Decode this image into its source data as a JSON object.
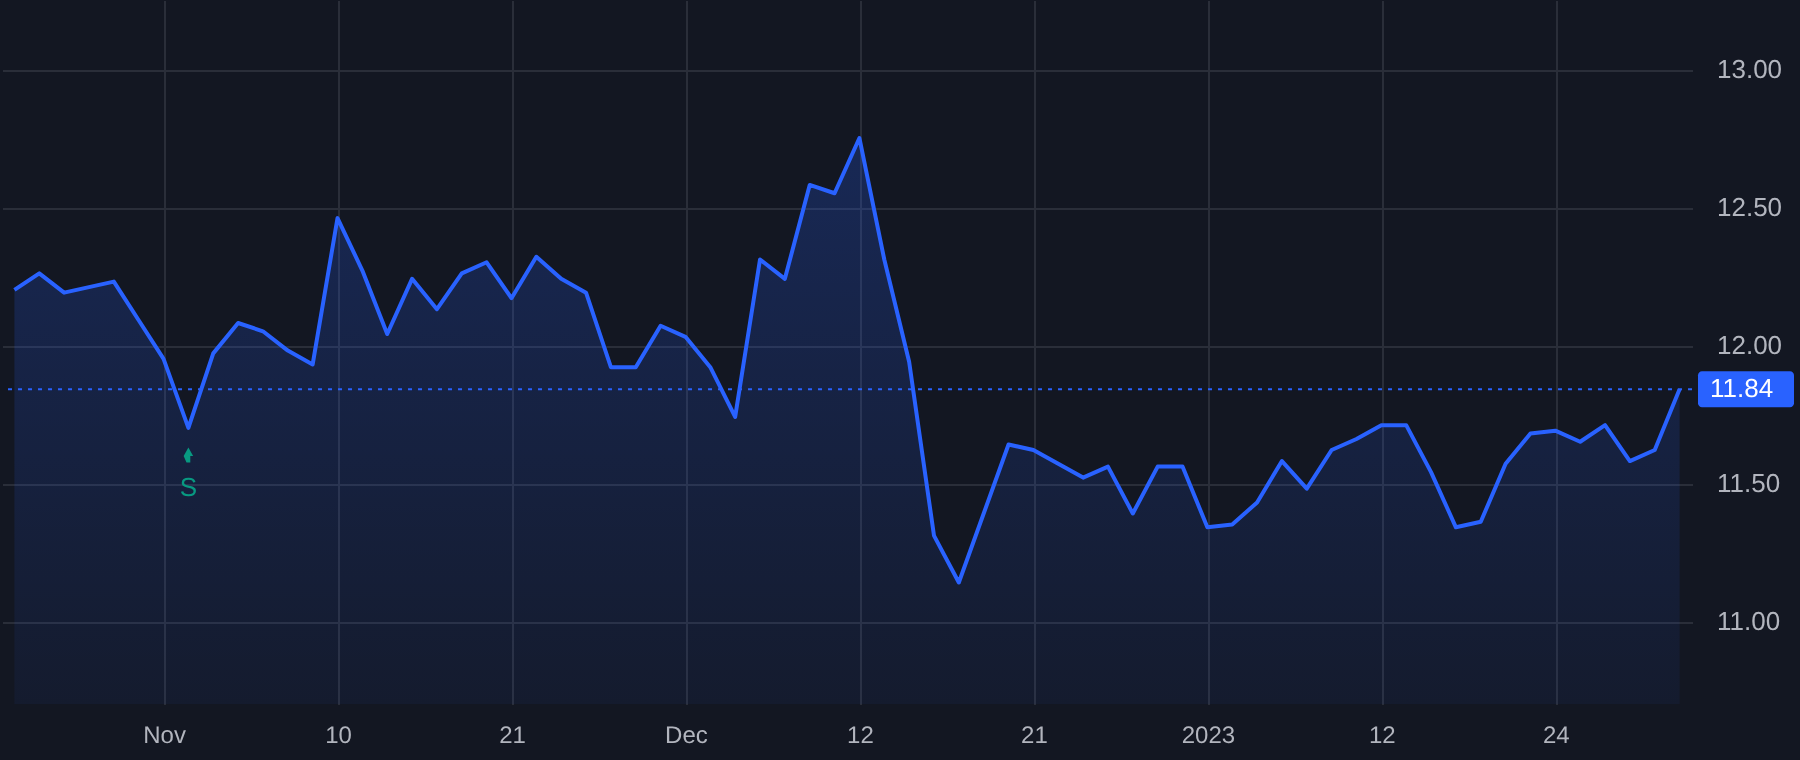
{
  "chart_data": {
    "type": "area",
    "categories": [
      null,
      null,
      null,
      null,
      null,
      null,
      "Nov",
      null,
      null,
      null,
      null,
      null,
      null,
      "10",
      null,
      null,
      null,
      null,
      null,
      null,
      "21",
      null,
      null,
      null,
      null,
      null,
      null,
      "Dec",
      null,
      null,
      null,
      null,
      null,
      null,
      "12",
      null,
      null,
      null,
      null,
      null,
      null,
      "21",
      null,
      null,
      null,
      null,
      null,
      null,
      "2023",
      null,
      null,
      null,
      null,
      null,
      null,
      "12",
      null,
      null,
      null,
      null,
      null,
      null,
      "24",
      null,
      null,
      null,
      null,
      null
    ],
    "series": [
      {
        "color": "#2962ff",
        "values": [
          12.2,
          12.26,
          12.19,
          12.21,
          12.23,
          12.09,
          11.95,
          11.7,
          11.97,
          12.08,
          12.05,
          11.98,
          11.93,
          12.46,
          12.27,
          12.04,
          12.24,
          12.13,
          12.26,
          12.3,
          12.17,
          12.32,
          12.24,
          12.19,
          11.92,
          11.92,
          12.07,
          12.03,
          11.92,
          11.74,
          12.31,
          12.24,
          12.58,
          12.55,
          12.75,
          12.31,
          11.94,
          11.31,
          11.14,
          11.39,
          11.64,
          11.62,
          11.57,
          11.52,
          11.56,
          11.39,
          11.56,
          11.56,
          11.34,
          11.35,
          11.43,
          11.58,
          11.48,
          11.62,
          11.66,
          11.71,
          11.71,
          11.54,
          11.34,
          11.36,
          11.57,
          11.68,
          11.69,
          11.65,
          11.71,
          11.58,
          11.62,
          11.84
        ]
      }
    ],
    "ylim": [
      10.7,
      13.25
    ],
    "yticks": [
      {
        "value": 11,
        "label": "11.00"
      },
      {
        "value": 11.5,
        "label": "11.50"
      },
      {
        "value": 12,
        "label": "12.00"
      },
      {
        "value": 12.5,
        "label": "12.50"
      },
      {
        "value": 13,
        "label": "13.00"
      }
    ],
    "grid": true,
    "ref_lines": [
      {
        "axis": "y",
        "value": 11.84,
        "label": "11.84",
        "color": "#2962ff",
        "line_style": "dotted"
      }
    ],
    "annotations": [
      {
        "text": "S",
        "y": 11.7
      }
    ]
  }
}
